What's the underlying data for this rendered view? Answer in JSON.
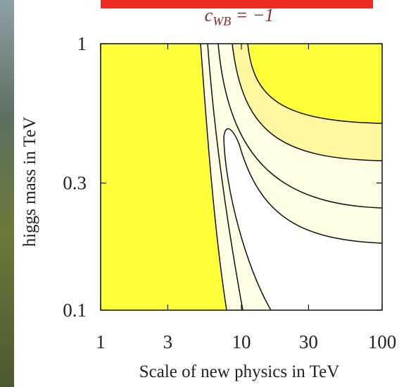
{
  "chart_data": {
    "type": "contour",
    "title_parts": [
      "c",
      "WB",
      " = −1"
    ],
    "xlabel": "Scale of new physics in TeV",
    "ylabel": "higgs mass in TeV",
    "xscale": "log",
    "yscale": "log",
    "xlim": [
      1,
      100
    ],
    "xticks": [
      1,
      3,
      10,
      30,
      100
    ],
    "ylim": [
      0.1,
      1
    ],
    "yticks": [
      0.1,
      0.3,
      1
    ]
  }
}
